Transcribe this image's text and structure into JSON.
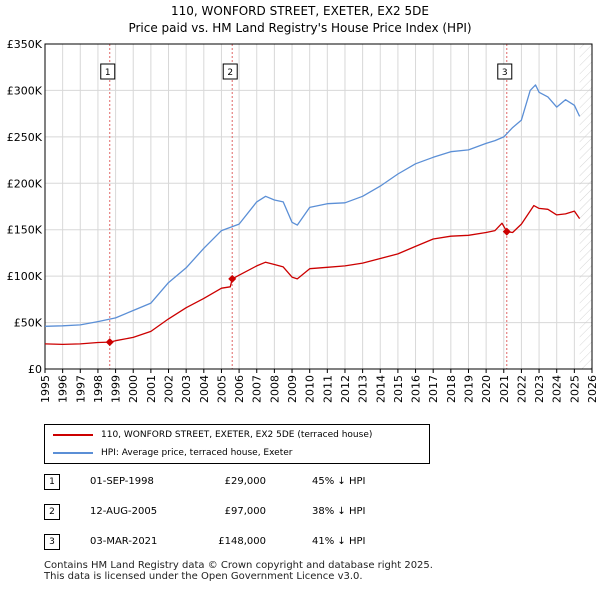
{
  "title_line1": "110, WONFORD STREET, EXETER, EX2 5DE",
  "title_line2": "Price paid vs. HM Land Registry's House Price Index (HPI)",
  "chart_data": {
    "type": "line",
    "x_range": [
      1995,
      2026
    ],
    "y_range": [
      0,
      350000
    ],
    "y_ticks": [
      0,
      50000,
      100000,
      150000,
      200000,
      250000,
      300000,
      350000
    ],
    "y_tick_labels": [
      "£0",
      "£50K",
      "£100K",
      "£150K",
      "£200K",
      "£250K",
      "£300K",
      "£350K"
    ],
    "x_ticks": [
      1995,
      1996,
      1997,
      1998,
      1999,
      2000,
      2001,
      2002,
      2003,
      2004,
      2005,
      2006,
      2007,
      2008,
      2009,
      2010,
      2011,
      2012,
      2013,
      2014,
      2015,
      2016,
      2017,
      2018,
      2019,
      2020,
      2021,
      2022,
      2023,
      2024,
      2025,
      2026
    ],
    "x_tick_labels": [
      "1995",
      "1996",
      "1997",
      "1998",
      "1999",
      "2000",
      "2001",
      "2002",
      "2003",
      "2004",
      "2005",
      "2006",
      "2007",
      "2008",
      "2009",
      "2010",
      "2011",
      "2012",
      "2013",
      "2014",
      "2015",
      "2016",
      "2017",
      "2018",
      "2019",
      "2020",
      "2021",
      "2022",
      "2023",
      "2024",
      "2025",
      "2026"
    ],
    "grid": true,
    "shaded_future_from": 2025.3,
    "series": [
      {
        "name": "110, WONFORD STREET, EXETER, EX2 5DE (terraced house)",
        "color": "#cc0000",
        "x": [
          1995.0,
          1996.0,
          1997.0,
          1998.0,
          1998.67,
          1999.0,
          2000.0,
          2001.0,
          2002.0,
          2003.0,
          2004.0,
          2005.0,
          2005.5,
          2005.61,
          2006.0,
          2007.0,
          2007.5,
          2008.0,
          2008.5,
          2009.0,
          2009.3,
          2010.0,
          2011.0,
          2012.0,
          2013.0,
          2014.0,
          2015.0,
          2016.0,
          2017.0,
          2018.0,
          2019.0,
          2020.0,
          2020.5,
          2020.9,
          2021.17,
          2021.5,
          2022.0,
          2022.7,
          2023.0,
          2023.5,
          2024.0,
          2024.5,
          2025.0,
          2025.3
        ],
        "values": [
          27000,
          26500,
          27000,
          28500,
          29000,
          30500,
          34000,
          40500,
          54000,
          66000,
          76000,
          87000,
          88500,
          97000,
          101000,
          111000,
          115000,
          112500,
          110000,
          99000,
          97000,
          108000,
          109500,
          111000,
          114000,
          119000,
          124000,
          132000,
          140000,
          143000,
          144000,
          147000,
          149000,
          157000,
          148000,
          147000,
          156000,
          176000,
          173000,
          172000,
          166000,
          167000,
          170000,
          162000
        ]
      },
      {
        "name": "HPI: Average price, terraced house, Exeter",
        "color": "#5b8fd6",
        "x": [
          1995.0,
          1996.0,
          1997.0,
          1998.0,
          1999.0,
          2000.0,
          2001.0,
          2002.0,
          2003.0,
          2004.0,
          2005.0,
          2006.0,
          2007.0,
          2007.5,
          2008.0,
          2008.5,
          2009.0,
          2009.3,
          2010.0,
          2011.0,
          2012.0,
          2013.0,
          2014.0,
          2015.0,
          2016.0,
          2017.0,
          2018.0,
          2019.0,
          2020.0,
          2020.5,
          2021.0,
          2021.5,
          2022.0,
          2022.5,
          2022.8,
          2023.0,
          2023.5,
          2024.0,
          2024.5,
          2025.0,
          2025.3
        ],
        "values": [
          46000,
          46500,
          47500,
          51000,
          55000,
          63000,
          71000,
          93000,
          109000,
          130000,
          149000,
          156000,
          180000,
          186000,
          182000,
          180000,
          158000,
          155000,
          174000,
          178000,
          179000,
          186000,
          197000,
          210000,
          221000,
          228000,
          234000,
          236000,
          243000,
          246000,
          250000,
          260000,
          268000,
          300000,
          306000,
          298000,
          293000,
          282000,
          290000,
          284000,
          272000
        ]
      }
    ],
    "sales": [
      {
        "label": "1",
        "x": 1998.67,
        "price": 29000
      },
      {
        "label": "2",
        "x": 2005.61,
        "price": 97000
      },
      {
        "label": "3",
        "x": 2021.17,
        "price": 148000
      }
    ]
  },
  "legend": {
    "property_label": "110, WONFORD STREET, EXETER, EX2 5DE (terraced house)",
    "hpi_label": "HPI: Average price, terraced house, Exeter",
    "property_color": "#cc0000",
    "hpi_color": "#5b8fd6"
  },
  "sales_table": [
    {
      "num": "1",
      "date": "01-SEP-1998",
      "price": "£29,000",
      "hpi": "45% ↓ HPI"
    },
    {
      "num": "2",
      "date": "12-AUG-2005",
      "price": "£97,000",
      "hpi": "38% ↓ HPI"
    },
    {
      "num": "3",
      "date": "03-MAR-2021",
      "price": "£148,000",
      "hpi": "41% ↓ HPI"
    }
  ],
  "footer_line1": "Contains HM Land Registry data © Crown copyright and database right 2025.",
  "footer_line2": "This data is licensed under the Open Government Licence v3.0."
}
